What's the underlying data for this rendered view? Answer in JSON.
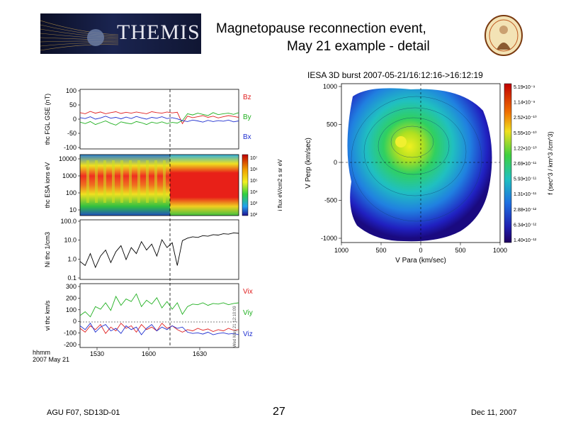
{
  "slide": {
    "banner_text": "THEMIS",
    "title_line1": "Magnetopause reconnection event,",
    "title_line2": "May 21 example - detail",
    "logo_icon": "themis-mission-patch-icon",
    "footer_left": "AGU F07, SD13D-01",
    "footer_page": "27",
    "footer_right": "Dec 11, 2007"
  },
  "chart_data": [
    {
      "type": "line",
      "panel": "magnetic-field",
      "ylabel": "thc FGL GSE (nT)",
      "ylim": [
        -100,
        100
      ],
      "yticks": [
        "100",
        "50",
        "0",
        "-50",
        "-100"
      ],
      "series": [
        {
          "name": "Bz",
          "color": "#e02020",
          "values": [
            22,
            18,
            26,
            20,
            24,
            18,
            22,
            25,
            19,
            23,
            20,
            24,
            21,
            18,
            25,
            22,
            20,
            24,
            21,
            23,
            -15,
            10,
            5,
            8,
            12,
            6,
            10,
            4,
            8,
            12,
            9,
            6
          ]
        },
        {
          "name": "By",
          "color": "#20b020",
          "values": [
            -10,
            -15,
            -8,
            -18,
            -12,
            -6,
            -14,
            -20,
            -9,
            -13,
            -16,
            -8,
            -12,
            -18,
            -10,
            -14,
            -9,
            -15,
            -11,
            -13,
            -5,
            18,
            14,
            20,
            16,
            12,
            22,
            15,
            18,
            20,
            16,
            22
          ]
        },
        {
          "name": "Bx",
          "color": "#2030d0",
          "values": [
            5,
            2,
            8,
            0,
            4,
            10,
            3,
            6,
            1,
            7,
            2,
            9,
            4,
            0,
            6,
            3,
            8,
            2,
            5,
            1,
            -5,
            -8,
            -3,
            -6,
            -10,
            -4,
            -8,
            -5,
            -7,
            -3,
            -9,
            -6
          ]
        }
      ]
    },
    {
      "type": "heatmap",
      "panel": "ion-spectrogram",
      "ylabel": "thc ESA ions eV",
      "yticks": [
        "10000",
        "1000",
        "100",
        "10"
      ],
      "colorbar_label": "i flux eV/cm2 s sr eV",
      "colorbar_ticks": [
        "10⁷",
        "10⁶",
        "10⁵",
        "10⁴",
        "10³",
        "10²"
      ]
    },
    {
      "type": "line",
      "panel": "density",
      "ylabel": "Ni thc 1/cm3",
      "yticks": [
        "100.0",
        "10.0",
        "1.0",
        "0.1"
      ],
      "log_scale": true,
      "ylim": [
        0.1,
        100
      ],
      "series": [
        {
          "name": "",
          "color": "#000000",
          "values": [
            0.8,
            0.5,
            2,
            0.4,
            1.5,
            3,
            0.7,
            2.5,
            5,
            1,
            4,
            2,
            8,
            3,
            6,
            1.5,
            10,
            4,
            7,
            0.5,
            9,
            12,
            14,
            13,
            16,
            15,
            18,
            17,
            20,
            19,
            22,
            21
          ]
        }
      ]
    },
    {
      "type": "line",
      "panel": "velocity",
      "ylabel": "vi thc km/s",
      "ylim": [
        -200,
        300
      ],
      "yticks": [
        "300",
        "200",
        "100",
        "0",
        "-100",
        "-200"
      ],
      "series": [
        {
          "name": "Vix",
          "color": "#e02020",
          "values": [
            -50,
            -80,
            -30,
            -60,
            -20,
            -90,
            -40,
            -70,
            -10,
            -50,
            -30,
            -80,
            -20,
            -60,
            -40,
            -70,
            -10,
            -50,
            -30,
            -60,
            -80,
            -60,
            -70,
            -50,
            -65,
            -55,
            -75,
            -60,
            -70,
            -50,
            -65,
            -60
          ]
        },
        {
          "name": "Viy",
          "color": "#20b020",
          "values": [
            50,
            80,
            40,
            120,
            100,
            150,
            90,
            200,
            130,
            180,
            160,
            220,
            120,
            170,
            140,
            190,
            110,
            160,
            100,
            150,
            60,
            120,
            140,
            135,
            150,
            130,
            145,
            140,
            150,
            135,
            145,
            150
          ]
        },
        {
          "name": "Viz",
          "color": "#2030d0",
          "values": [
            -30,
            -60,
            -10,
            -80,
            -40,
            -20,
            -70,
            -50,
            -90,
            -30,
            -60,
            -40,
            -100,
            -50,
            -20,
            -70,
            -40,
            -60,
            -30,
            -50,
            -40,
            -80,
            -90,
            -85,
            -95,
            -80,
            -100,
            -90,
            -85,
            -95,
            -90,
            -100
          ]
        }
      ],
      "ref_line": 0
    }
  ],
  "timeseries_axis": {
    "label_line1": "hhmm",
    "label_line2": "2007 May 21",
    "ticks": [
      "1530",
      "1600",
      "1630"
    ],
    "side_note": "Wed May 21 12:10:09"
  },
  "distribution": {
    "type": "heatmap",
    "title": "IESA 3D burst 2007-05-21/16:12:16->16:12:19",
    "xlabel": "V Para (km/sec)",
    "ylabel": "V Perp (km/sec)",
    "xticks": [
      "1000",
      "500",
      "0",
      "500",
      "1000"
    ],
    "yticks": [
      "1000",
      "500",
      "0",
      "-500",
      "-1000"
    ],
    "colorbar_label": "f (sec^3 / km^3 /cm^3)",
    "colorbar_ticks": [
      "5.19•10⁻⁹",
      "1.14•10⁻⁹",
      "2.52•10⁻¹⁰",
      "5.55•10⁻¹⁰",
      "1.22•10⁻¹⁰",
      "2.69•10⁻¹¹",
      "5.93•10⁻¹¹",
      "1.31•10⁻¹¹",
      "2.88•10⁻¹²",
      "6.34•10⁻¹²",
      "1.40•10⁻¹²"
    ]
  }
}
